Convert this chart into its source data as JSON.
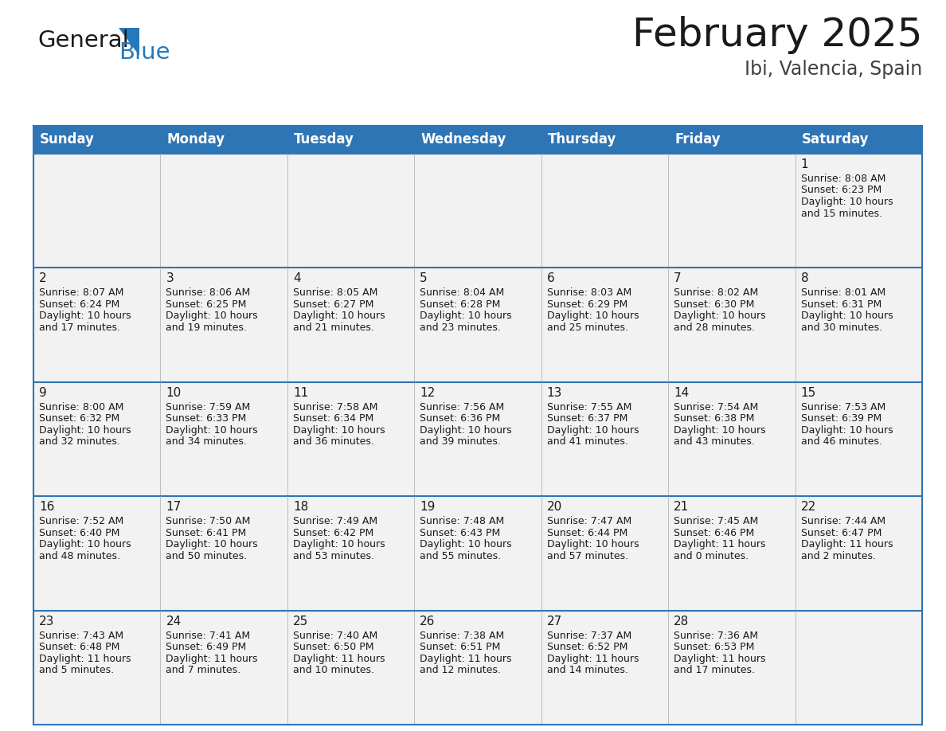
{
  "title": "February 2025",
  "subtitle": "Ibi, Valencia, Spain",
  "header_bg": "#2E75B6",
  "header_text_color": "#FFFFFF",
  "cell_bg": "#F2F2F2",
  "separator_color": "#2E75B6",
  "text_color": "#1a1a1a",
  "day_headers": [
    "Sunday",
    "Monday",
    "Tuesday",
    "Wednesday",
    "Thursday",
    "Friday",
    "Saturday"
  ],
  "weeks": [
    [
      {
        "day": null,
        "sunrise": null,
        "sunset": null,
        "daylight": null
      },
      {
        "day": null,
        "sunrise": null,
        "sunset": null,
        "daylight": null
      },
      {
        "day": null,
        "sunrise": null,
        "sunset": null,
        "daylight": null
      },
      {
        "day": null,
        "sunrise": null,
        "sunset": null,
        "daylight": null
      },
      {
        "day": null,
        "sunrise": null,
        "sunset": null,
        "daylight": null
      },
      {
        "day": null,
        "sunrise": null,
        "sunset": null,
        "daylight": null
      },
      {
        "day": 1,
        "sunrise": "8:08 AM",
        "sunset": "6:23 PM",
        "daylight": "10 hours\nand 15 minutes."
      }
    ],
    [
      {
        "day": 2,
        "sunrise": "8:07 AM",
        "sunset": "6:24 PM",
        "daylight": "10 hours\nand 17 minutes."
      },
      {
        "day": 3,
        "sunrise": "8:06 AM",
        "sunset": "6:25 PM",
        "daylight": "10 hours\nand 19 minutes."
      },
      {
        "day": 4,
        "sunrise": "8:05 AM",
        "sunset": "6:27 PM",
        "daylight": "10 hours\nand 21 minutes."
      },
      {
        "day": 5,
        "sunrise": "8:04 AM",
        "sunset": "6:28 PM",
        "daylight": "10 hours\nand 23 minutes."
      },
      {
        "day": 6,
        "sunrise": "8:03 AM",
        "sunset": "6:29 PM",
        "daylight": "10 hours\nand 25 minutes."
      },
      {
        "day": 7,
        "sunrise": "8:02 AM",
        "sunset": "6:30 PM",
        "daylight": "10 hours\nand 28 minutes."
      },
      {
        "day": 8,
        "sunrise": "8:01 AM",
        "sunset": "6:31 PM",
        "daylight": "10 hours\nand 30 minutes."
      }
    ],
    [
      {
        "day": 9,
        "sunrise": "8:00 AM",
        "sunset": "6:32 PM",
        "daylight": "10 hours\nand 32 minutes."
      },
      {
        "day": 10,
        "sunrise": "7:59 AM",
        "sunset": "6:33 PM",
        "daylight": "10 hours\nand 34 minutes."
      },
      {
        "day": 11,
        "sunrise": "7:58 AM",
        "sunset": "6:34 PM",
        "daylight": "10 hours\nand 36 minutes."
      },
      {
        "day": 12,
        "sunrise": "7:56 AM",
        "sunset": "6:36 PM",
        "daylight": "10 hours\nand 39 minutes."
      },
      {
        "day": 13,
        "sunrise": "7:55 AM",
        "sunset": "6:37 PM",
        "daylight": "10 hours\nand 41 minutes."
      },
      {
        "day": 14,
        "sunrise": "7:54 AM",
        "sunset": "6:38 PM",
        "daylight": "10 hours\nand 43 minutes."
      },
      {
        "day": 15,
        "sunrise": "7:53 AM",
        "sunset": "6:39 PM",
        "daylight": "10 hours\nand 46 minutes."
      }
    ],
    [
      {
        "day": 16,
        "sunrise": "7:52 AM",
        "sunset": "6:40 PM",
        "daylight": "10 hours\nand 48 minutes."
      },
      {
        "day": 17,
        "sunrise": "7:50 AM",
        "sunset": "6:41 PM",
        "daylight": "10 hours\nand 50 minutes."
      },
      {
        "day": 18,
        "sunrise": "7:49 AM",
        "sunset": "6:42 PM",
        "daylight": "10 hours\nand 53 minutes."
      },
      {
        "day": 19,
        "sunrise": "7:48 AM",
        "sunset": "6:43 PM",
        "daylight": "10 hours\nand 55 minutes."
      },
      {
        "day": 20,
        "sunrise": "7:47 AM",
        "sunset": "6:44 PM",
        "daylight": "10 hours\nand 57 minutes."
      },
      {
        "day": 21,
        "sunrise": "7:45 AM",
        "sunset": "6:46 PM",
        "daylight": "11 hours\nand 0 minutes."
      },
      {
        "day": 22,
        "sunrise": "7:44 AM",
        "sunset": "6:47 PM",
        "daylight": "11 hours\nand 2 minutes."
      }
    ],
    [
      {
        "day": 23,
        "sunrise": "7:43 AM",
        "sunset": "6:48 PM",
        "daylight": "11 hours\nand 5 minutes."
      },
      {
        "day": 24,
        "sunrise": "7:41 AM",
        "sunset": "6:49 PM",
        "daylight": "11 hours\nand 7 minutes."
      },
      {
        "day": 25,
        "sunrise": "7:40 AM",
        "sunset": "6:50 PM",
        "daylight": "11 hours\nand 10 minutes."
      },
      {
        "day": 26,
        "sunrise": "7:38 AM",
        "sunset": "6:51 PM",
        "daylight": "11 hours\nand 12 minutes."
      },
      {
        "day": 27,
        "sunrise": "7:37 AM",
        "sunset": "6:52 PM",
        "daylight": "11 hours\nand 14 minutes."
      },
      {
        "day": 28,
        "sunrise": "7:36 AM",
        "sunset": "6:53 PM",
        "daylight": "11 hours\nand 17 minutes."
      },
      {
        "day": null,
        "sunrise": null,
        "sunset": null,
        "daylight": null
      }
    ]
  ],
  "logo_general_color": "#1a1a1a",
  "logo_blue_color": "#2479BD",
  "logo_triangle_color": "#2479BD",
  "title_fontsize": 36,
  "subtitle_fontsize": 17,
  "header_fontsize": 12,
  "day_num_fontsize": 11,
  "cell_text_fontsize": 9
}
